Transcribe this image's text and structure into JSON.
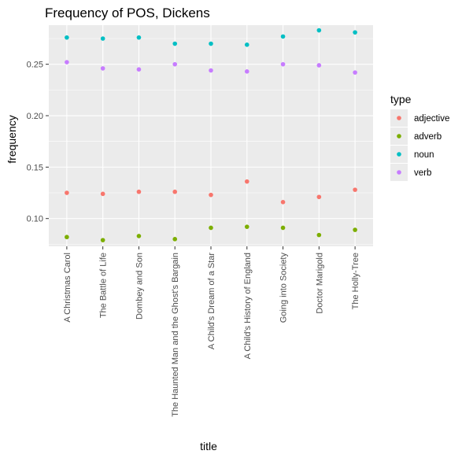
{
  "chart_data": {
    "type": "scatter",
    "title": "Frequency of POS, Dickens",
    "xlabel": "title",
    "ylabel": "frequency",
    "categories": [
      "A Christmas Carol",
      "The Battle of Life",
      "Dombey and Son",
      "The Haunted Man and the Ghost's Bargain",
      "A Child's Dream of a Star",
      "A Child's History of England",
      "Going into Society",
      "Doctor Marigold",
      "The Holly-Tree"
    ],
    "y_ticks": [
      "0.10",
      "0.15",
      "0.20",
      "0.25"
    ],
    "ylim": [
      0.073,
      0.288
    ],
    "grid": true,
    "legend": {
      "title": "type",
      "placement": "right"
    },
    "series": [
      {
        "name": "adjective",
        "color": "#F8766D",
        "values": [
          0.125,
          0.124,
          0.126,
          0.126,
          0.123,
          0.136,
          0.116,
          0.121,
          0.128
        ]
      },
      {
        "name": "adverb",
        "color": "#7CAE00",
        "values": [
          0.082,
          0.079,
          0.083,
          0.08,
          0.091,
          0.092,
          0.091,
          0.084,
          0.089
        ]
      },
      {
        "name": "noun",
        "color": "#00BFC4",
        "values": [
          0.276,
          0.275,
          0.276,
          0.27,
          0.27,
          0.269,
          0.277,
          0.283,
          0.281
        ]
      },
      {
        "name": "verb",
        "color": "#C77CFF",
        "values": [
          0.252,
          0.246,
          0.245,
          0.25,
          0.244,
          0.243,
          0.25,
          0.249,
          0.242
        ]
      }
    ]
  }
}
